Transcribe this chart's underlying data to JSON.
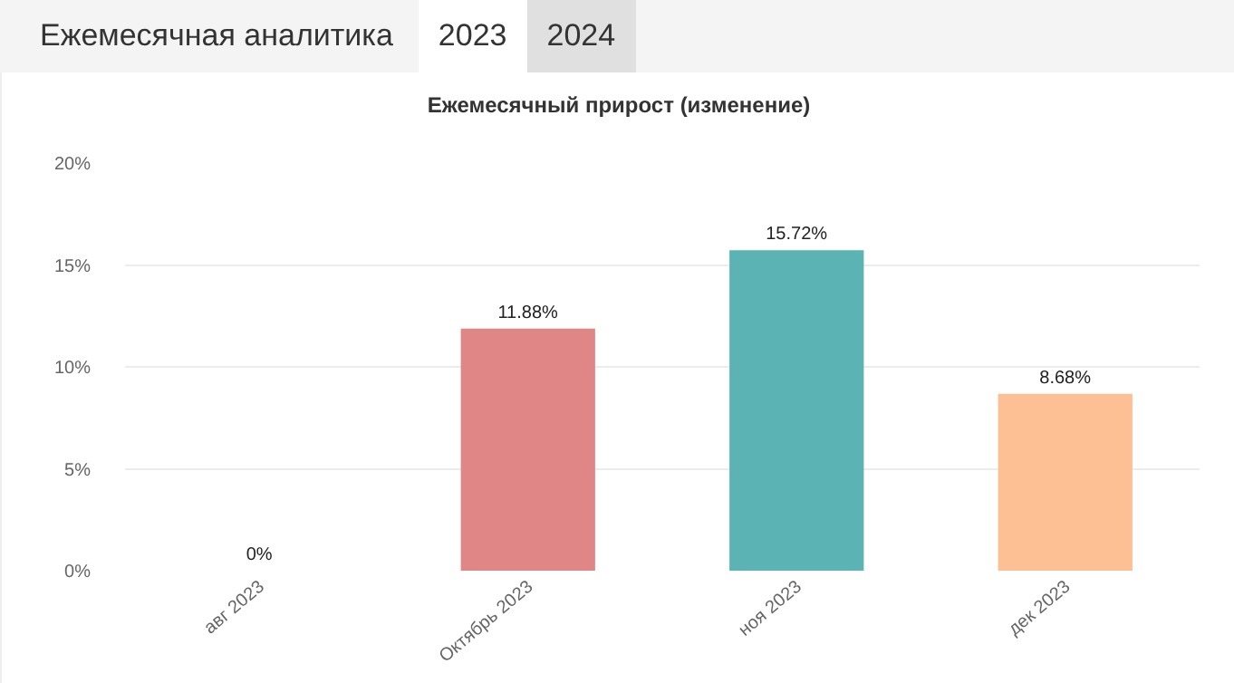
{
  "chart_data": {
    "type": "bar",
    "title": "Ежемесячный прирост (изменение)",
    "annotations": [
      "Ежемесячная аналитика",
      "2023",
      "2024"
    ],
    "categories": [
      "авг 2023",
      "Октябрь 2023",
      "ноя 2023",
      "дек 2023"
    ],
    "values": [
      0,
      11.88,
      15.72,
      8.68
    ],
    "colors": [
      "#e07f7f",
      "#e08686",
      "#5bb3b3",
      "#fdbf94"
    ],
    "value_labels": [
      "0%",
      "11.88%",
      "15.72%",
      "8.68%"
    ],
    "ylim": [
      0,
      20
    ],
    "yticks": [
      {
        "value": 0,
        "label": "0%"
      },
      {
        "value": 5,
        "label": "5%"
      },
      {
        "value": 10,
        "label": "10%"
      },
      {
        "value": 15,
        "label": "15%"
      },
      {
        "value": 20,
        "label": "20%"
      }
    ],
    "grid": true,
    "legend": false
  }
}
